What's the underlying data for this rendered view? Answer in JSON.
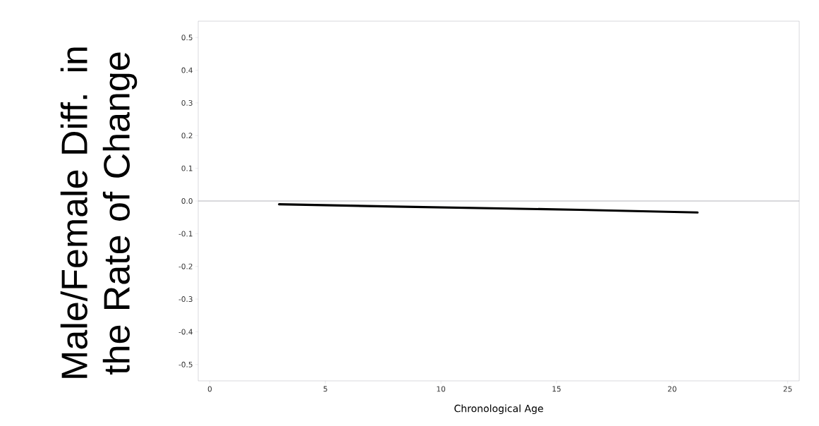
{
  "chart_data": {
    "type": "line",
    "xlabel": "Chronological Age",
    "ylabel": "Male/Female Diff. in the Rate of Change",
    "x": [
      3,
      8,
      12,
      16,
      21.1
    ],
    "series": [
      {
        "color": "#000000",
        "values": [
          -0.01,
          -0.017,
          -0.022,
          -0.027,
          -0.035
        ]
      }
    ],
    "xlim": [
      -0.5,
      25.5
    ],
    "ylim": [
      -0.55,
      0.55
    ],
    "xticks": [
      0,
      5,
      10,
      15,
      20,
      25
    ],
    "yticks": [
      -0.5,
      -0.4,
      -0.3,
      -0.2,
      -0.1,
      {
        "value": 0,
        "label": "0.0"
      },
      0.1,
      0.2,
      0.3,
      0.4,
      0.5
    ],
    "ref_lines": [
      {
        "axis": "y",
        "value": 0,
        "color": "#a0a0a8"
      }
    ],
    "grid": false,
    "marker": "none",
    "line_style": "solid"
  }
}
